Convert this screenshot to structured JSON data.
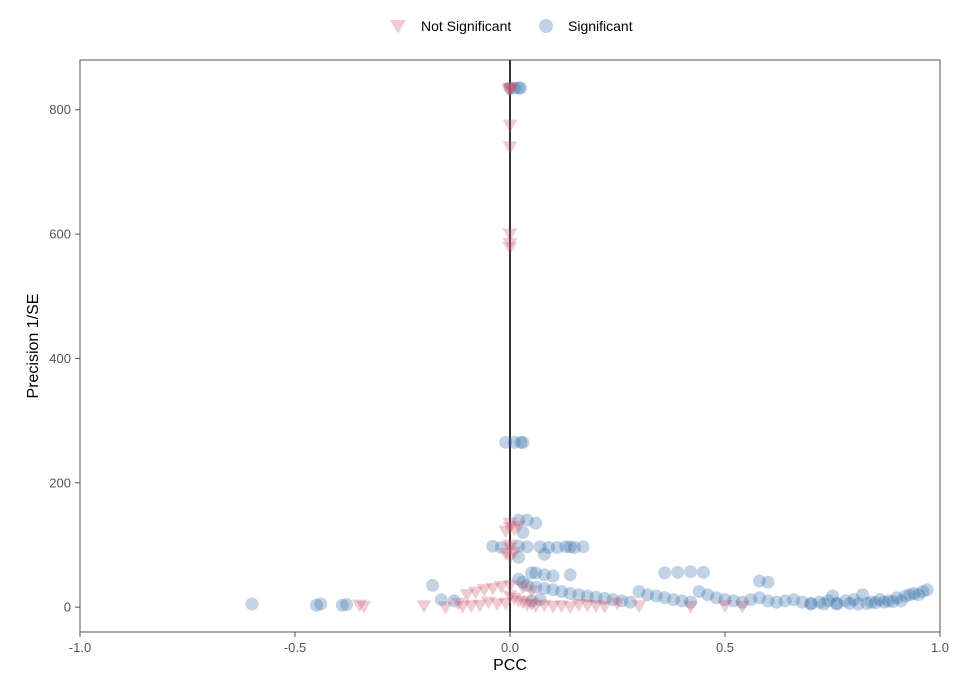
{
  "chart_data": {
    "type": "scatter",
    "xlabel": "PCC",
    "ylabel": "Precision 1/SE",
    "xlim": [
      -1.0,
      1.0
    ],
    "ylim": [
      -40,
      880
    ],
    "x_ticks": [
      -1.0,
      -0.5,
      0.0,
      0.5,
      1.0
    ],
    "x_tick_labels": [
      "-1.0",
      "-0.5",
      "0.0",
      "0.5",
      "1.0"
    ],
    "y_ticks": [
      0,
      200,
      400,
      600,
      800
    ],
    "y_tick_labels": [
      "0",
      "200",
      "400",
      "600",
      "800"
    ],
    "grid": false,
    "legend_position": "top",
    "reference_line_x": 0.0,
    "series": [
      {
        "name": "Not Significant",
        "marker": "triangle-down",
        "color": "#c9536b",
        "points": [
          [
            0.0,
            835
          ],
          [
            0.0,
            833
          ],
          [
            -0.003,
            832
          ],
          [
            0.003,
            834
          ],
          [
            0.0,
            775
          ],
          [
            0.0,
            740
          ],
          [
            0.0,
            600
          ],
          [
            0.0,
            585
          ],
          [
            0.0,
            578
          ],
          [
            0.0,
            135
          ],
          [
            0.0,
            128
          ],
          [
            0.01,
            125
          ],
          [
            0.02,
            130
          ],
          [
            -0.01,
            122
          ],
          [
            0.0,
            100
          ],
          [
            0.0,
            95
          ],
          [
            0.01,
            88
          ],
          [
            -0.01,
            86
          ],
          [
            0.0,
            80
          ],
          [
            0.0,
            35
          ],
          [
            -0.02,
            33
          ],
          [
            -0.04,
            30
          ],
          [
            0.03,
            32
          ],
          [
            -0.06,
            28
          ],
          [
            0.05,
            26
          ],
          [
            -0.08,
            24
          ],
          [
            -0.1,
            20
          ],
          [
            0.0,
            18
          ],
          [
            0.01,
            14
          ],
          [
            0.02,
            10
          ],
          [
            0.03,
            8
          ],
          [
            -0.01,
            6
          ],
          [
            -0.03,
            5
          ],
          [
            -0.05,
            8
          ],
          [
            -0.07,
            3
          ],
          [
            -0.09,
            2
          ],
          [
            -0.11,
            1
          ],
          [
            -0.12,
            6
          ],
          [
            -0.2,
            2
          ],
          [
            -0.15,
            0
          ],
          [
            0.04,
            4
          ],
          [
            0.06,
            2
          ],
          [
            0.08,
            3
          ],
          [
            0.1,
            1
          ],
          [
            0.12,
            2
          ],
          [
            0.14,
            0
          ],
          [
            0.16,
            4
          ],
          [
            0.18,
            3
          ],
          [
            0.2,
            2
          ],
          [
            0.22,
            1
          ],
          [
            0.25,
            6
          ],
          [
            0.3,
            2
          ],
          [
            -0.34,
            1
          ],
          [
            -0.35,
            3
          ],
          [
            0.42,
            1
          ],
          [
            0.5,
            2
          ],
          [
            0.54,
            1
          ],
          [
            0.05,
            5
          ]
        ]
      },
      {
        "name": "Significant",
        "marker": "circle",
        "color": "#2e6aa6",
        "points": [
          [
            0.0,
            835
          ],
          [
            0.01,
            835
          ],
          [
            0.02,
            835
          ],
          [
            0.025,
            835
          ],
          [
            -0.01,
            265
          ],
          [
            0.01,
            265
          ],
          [
            0.025,
            265
          ],
          [
            0.03,
            265
          ],
          [
            0.02,
            140
          ],
          [
            0.04,
            140
          ],
          [
            0.06,
            135
          ],
          [
            0.03,
            120
          ],
          [
            -0.04,
            98
          ],
          [
            -0.02,
            96
          ],
          [
            0.02,
            98
          ],
          [
            0.04,
            97
          ],
          [
            0.07,
            97
          ],
          [
            0.09,
            96
          ],
          [
            0.11,
            96
          ],
          [
            0.13,
            97
          ],
          [
            0.14,
            97
          ],
          [
            0.15,
            96
          ],
          [
            0.17,
            97
          ],
          [
            0.08,
            85
          ],
          [
            0.02,
            80
          ],
          [
            0.05,
            55
          ],
          [
            0.06,
            55
          ],
          [
            0.08,
            52
          ],
          [
            0.1,
            50
          ],
          [
            0.14,
            52
          ],
          [
            0.36,
            55
          ],
          [
            0.39,
            56
          ],
          [
            0.42,
            57
          ],
          [
            0.45,
            56
          ],
          [
            0.58,
            42
          ],
          [
            0.02,
            45
          ],
          [
            0.03,
            40
          ],
          [
            0.04,
            35
          ],
          [
            0.06,
            32
          ],
          [
            0.08,
            30
          ],
          [
            0.1,
            28
          ],
          [
            0.12,
            25
          ],
          [
            0.14,
            22
          ],
          [
            0.16,
            20
          ],
          [
            0.18,
            18
          ],
          [
            0.2,
            16
          ],
          [
            0.22,
            14
          ],
          [
            0.24,
            12
          ],
          [
            0.26,
            10
          ],
          [
            0.28,
            8
          ],
          [
            0.3,
            25
          ],
          [
            0.32,
            20
          ],
          [
            0.34,
            18
          ],
          [
            0.36,
            15
          ],
          [
            0.38,
            12
          ],
          [
            0.4,
            10
          ],
          [
            0.42,
            8
          ],
          [
            0.44,
            25
          ],
          [
            0.46,
            20
          ],
          [
            0.48,
            15
          ],
          [
            0.5,
            12
          ],
          [
            0.52,
            10
          ],
          [
            0.54,
            8
          ],
          [
            0.56,
            12
          ],
          [
            0.58,
            15
          ],
          [
            0.6,
            10
          ],
          [
            0.62,
            8
          ],
          [
            0.64,
            10
          ],
          [
            0.66,
            12
          ],
          [
            0.68,
            8
          ],
          [
            0.7,
            6
          ],
          [
            0.72,
            8
          ],
          [
            0.74,
            10
          ],
          [
            0.75,
            18
          ],
          [
            0.76,
            6
          ],
          [
            0.78,
            10
          ],
          [
            0.8,
            12
          ],
          [
            0.82,
            20
          ],
          [
            0.84,
            8
          ],
          [
            0.86,
            12
          ],
          [
            0.88,
            10
          ],
          [
            0.9,
            15
          ],
          [
            0.92,
            18
          ],
          [
            0.93,
            20
          ],
          [
            0.94,
            22
          ],
          [
            0.95,
            20
          ],
          [
            0.96,
            25
          ],
          [
            0.97,
            28
          ],
          [
            0.7,
            5
          ],
          [
            0.73,
            5
          ],
          [
            0.76,
            5
          ],
          [
            0.79,
            6
          ],
          [
            0.81,
            5
          ],
          [
            0.83,
            6
          ],
          [
            0.85,
            7
          ],
          [
            0.87,
            8
          ],
          [
            0.89,
            9
          ],
          [
            0.91,
            10
          ],
          [
            0.05,
            10
          ],
          [
            0.07,
            12
          ],
          [
            -0.6,
            5
          ],
          [
            -0.45,
            3
          ],
          [
            -0.44,
            5
          ],
          [
            -0.39,
            3
          ],
          [
            -0.38,
            4
          ],
          [
            -0.18,
            35
          ],
          [
            -0.16,
            12
          ],
          [
            -0.13,
            10
          ],
          [
            0.6,
            40
          ]
        ]
      }
    ]
  }
}
